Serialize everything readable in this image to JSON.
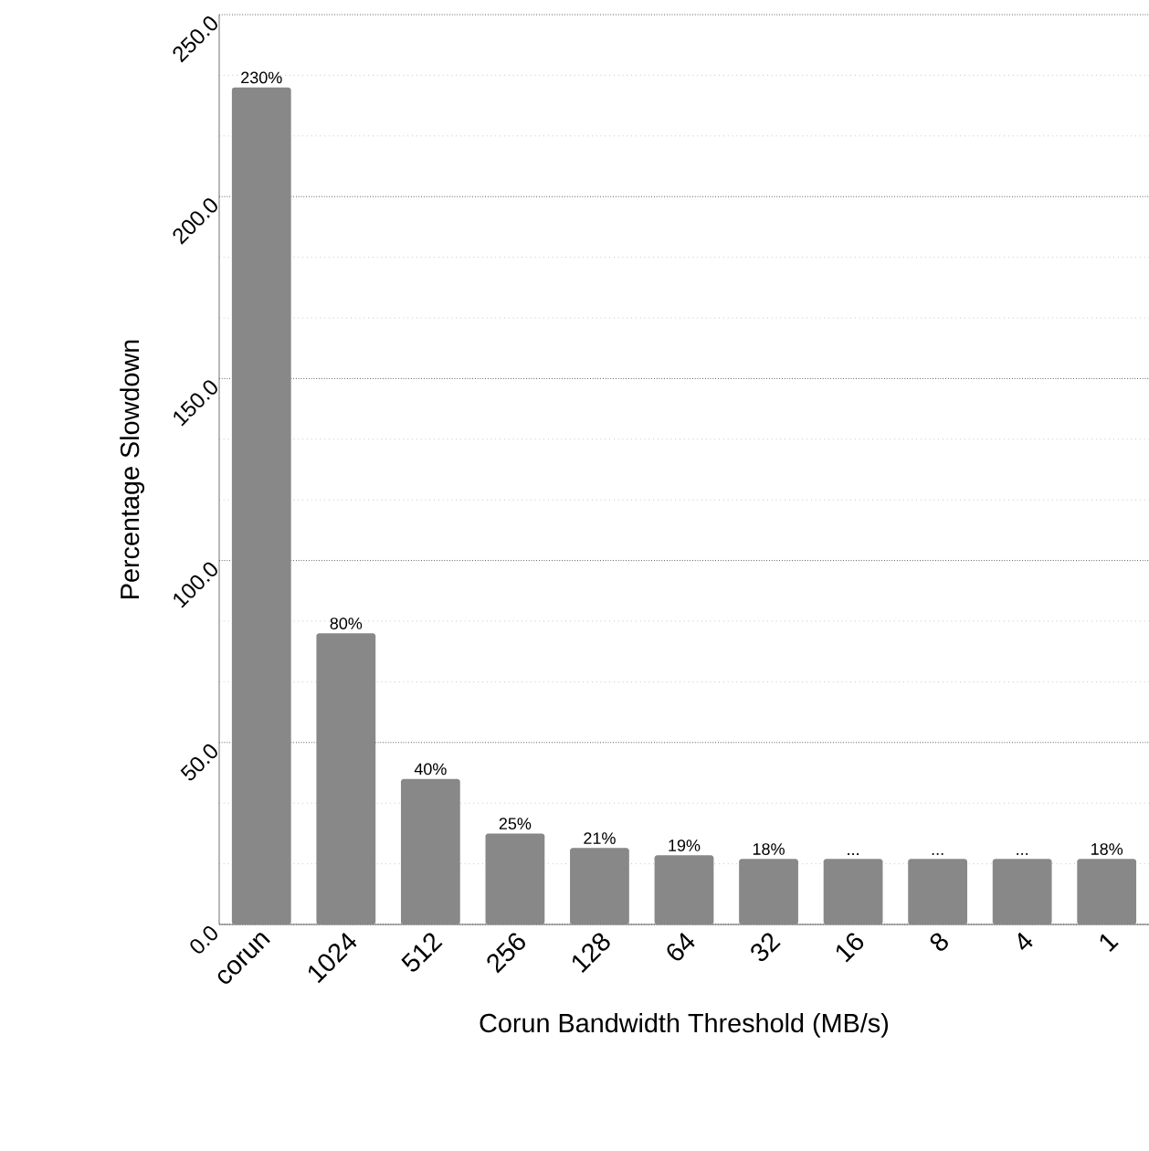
{
  "chart_data": {
    "type": "bar",
    "xlabel": "Corun Bandwidth Threshold (MB/s)",
    "ylabel": "Percentage Slowdown",
    "categories": [
      "corun",
      "1024",
      "512",
      "256",
      "128",
      "64",
      "32",
      "16",
      "8",
      "4",
      "1"
    ],
    "values": [
      230,
      80,
      40,
      25,
      21,
      19,
      18,
      18,
      18,
      18,
      18
    ],
    "value_labels": [
      "230%",
      "80%",
      "40%",
      "25%",
      "21%",
      "19%",
      "18%",
      "...",
      "...",
      "...",
      "18%"
    ],
    "color": "#888888",
    "ylim": [
      0,
      250
    ],
    "yticks": [
      {
        "value": 0,
        "label": "0.0"
      },
      {
        "value": 50,
        "label": "50.0"
      },
      {
        "value": 100,
        "label": "100.0"
      },
      {
        "value": 150,
        "label": "150.0"
      },
      {
        "value": 200,
        "label": "200.0"
      },
      {
        "value": 250,
        "label": "250.0"
      }
    ],
    "grid": true
  }
}
